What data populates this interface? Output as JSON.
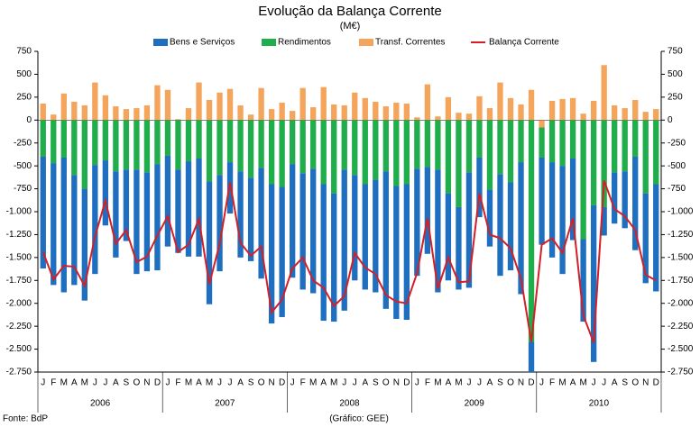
{
  "chart_data": {
    "type": "bar",
    "title": "Evolução da Balança Corrente",
    "subtitle": "(M€)",
    "source": "Fonte: BdP",
    "credit": "(Gráfico: GEE)",
    "categories": [
      "J",
      "F",
      "M",
      "A",
      "M",
      "J",
      "J",
      "A",
      "S",
      "O",
      "N",
      "D",
      "J",
      "F",
      "M",
      "A",
      "M",
      "J",
      "J",
      "A",
      "S",
      "O",
      "N",
      "D",
      "J",
      "F",
      "M",
      "A",
      "M",
      "J",
      "J",
      "A",
      "S",
      "O",
      "N",
      "D",
      "J",
      "F",
      "M",
      "A",
      "M",
      "J",
      "J",
      "A",
      "S",
      "O",
      "N",
      "D",
      "J",
      "F",
      "M",
      "A",
      "M",
      "J",
      "J",
      "A",
      "S",
      "O",
      "N",
      "D"
    ],
    "years": [
      "2006",
      "2007",
      "2008",
      "2009",
      "2010"
    ],
    "ylim": [
      -2750,
      750
    ],
    "yticks": [
      750,
      500,
      250,
      0,
      -250,
      -500,
      -750,
      {
        "value": -1000,
        "label": "-1.000"
      },
      {
        "value": -1250,
        "label": "-1.250"
      },
      {
        "value": -1500,
        "label": "-1.500"
      },
      {
        "value": -1750,
        "label": "-1.750"
      },
      {
        "value": -2000,
        "label": "-2.000"
      },
      {
        "value": -2250,
        "label": "-2.250"
      },
      {
        "value": -2500,
        "label": "-2.500"
      },
      {
        "value": -2750,
        "label": "-2.750"
      }
    ],
    "series": [
      {
        "name": "Bens e Serviços",
        "color": "#1f6fc0",
        "values": [
          -1220,
          -1330,
          -1470,
          -1200,
          -1220,
          -1190,
          -710,
          -940,
          -780,
          -1140,
          -1080,
          -1160,
          -990,
          -910,
          -1040,
          -1070,
          -1340,
          -1050,
          -560,
          -940,
          -910,
          -1210,
          -1520,
          -1420,
          -1240,
          -1270,
          -1360,
          -1490,
          -1400,
          -1540,
          -1150,
          -1150,
          -1230,
          -1500,
          -1450,
          -1480,
          -1170,
          -950,
          -1340,
          -950,
          -900,
          -1260,
          -650,
          -620,
          -1110,
          -960,
          -1440,
          -330,
          -950,
          -1040,
          -1180,
          -890,
          -900,
          -1710,
          -310,
          -560,
          -620,
          -1020,
          -980,
          -1170
        ]
      },
      {
        "name": "Rendimentos",
        "color": "#1fae4b",
        "values": [
          -400,
          -470,
          -410,
          -600,
          -750,
          -490,
          -440,
          -560,
          -540,
          -540,
          -570,
          -480,
          -390,
          -540,
          -450,
          -420,
          -670,
          -600,
          -460,
          -560,
          -630,
          -520,
          -700,
          -730,
          -480,
          -580,
          -530,
          -700,
          -800,
          -540,
          -600,
          -700,
          -650,
          -560,
          -720,
          -700,
          -530,
          -510,
          -540,
          -800,
          -950,
          -570,
          -410,
          -760,
          -590,
          -680,
          -460,
          -2420,
          -330,
          -460,
          -500,
          -420,
          -1300,
          -930,
          -950,
          -570,
          -560,
          -400,
          -800,
          -700
        ]
      },
      {
        "name": "Transf. Correntes",
        "color": "#f5a45c",
        "values": [
          180,
          60,
          290,
          200,
          160,
          410,
          270,
          150,
          120,
          130,
          160,
          380,
          330,
          10,
          130,
          410,
          220,
          300,
          340,
          160,
          60,
          350,
          120,
          190,
          100,
          350,
          140,
          360,
          170,
          160,
          300,
          240,
          200,
          150,
          190,
          180,
          30,
          390,
          40,
          250,
          80,
          70,
          260,
          130,
          410,
          240,
          170,
          330,
          -80,
          210,
          230,
          240,
          70,
          210,
          600,
          160,
          130,
          220,
          90,
          120
        ]
      },
      {
        "name": "Balança Corrente",
        "color": "#d41f26",
        "type": "line",
        "values": [
          -1440,
          -1740,
          -1590,
          -1600,
          -1810,
          -1270,
          -880,
          -1350,
          -1200,
          -1550,
          -1490,
          -1260,
          -1050,
          -1440,
          -1360,
          -1080,
          -1790,
          -1350,
          -680,
          -1340,
          -1480,
          -1380,
          -2100,
          -1960,
          -1620,
          -1500,
          -1750,
          -1830,
          -2030,
          -1920,
          -1450,
          -1610,
          -1680,
          -1910,
          -1980,
          -2000,
          -1670,
          -1070,
          -1840,
          -1500,
          -1770,
          -1760,
          -800,
          -1250,
          -1290,
          -1400,
          -1730,
          -2420,
          -1360,
          -1290,
          -1450,
          -1070,
          -2130,
          -2430,
          -660,
          -970,
          -1050,
          -1200,
          -1690,
          -1750
        ]
      }
    ]
  }
}
